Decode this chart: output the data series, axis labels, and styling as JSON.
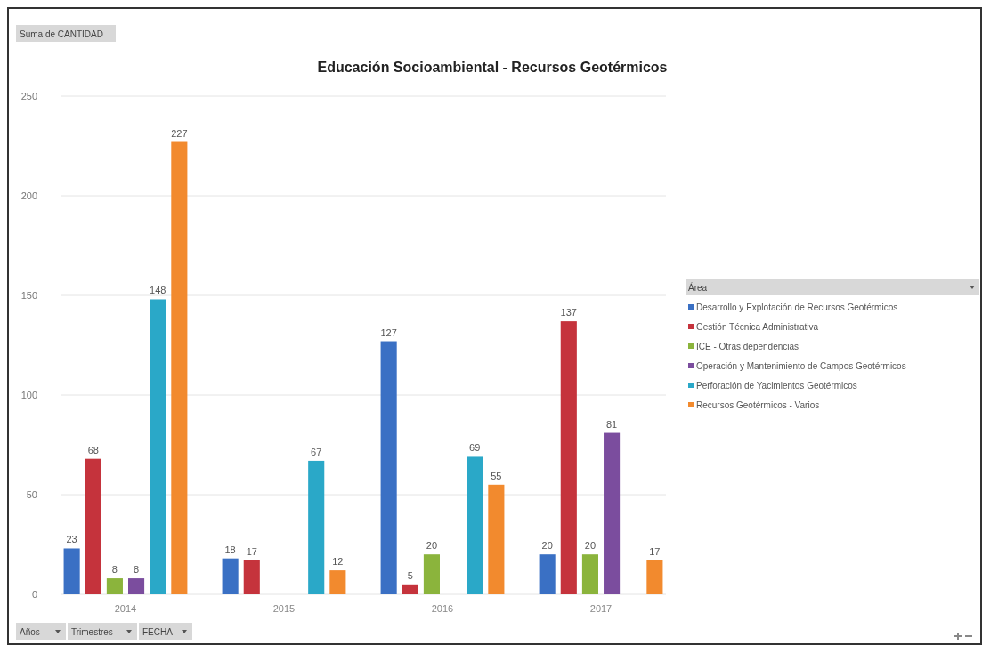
{
  "chart_data": {
    "type": "bar",
    "title": "Educación Socioambiental - Recursos Geotérmicos",
    "categories": [
      "2014",
      "2015",
      "2016",
      "2017"
    ],
    "series": [
      {
        "name": "Desarrollo y Explotación de Recursos Geotérmicos",
        "color": "#3a70c4",
        "values": [
          23,
          18,
          127,
          20
        ]
      },
      {
        "name": "Gestión Técnica Administrativa",
        "color": "#c5333c",
        "values": [
          68,
          17,
          5,
          137
        ]
      },
      {
        "name": "ICE - Otras dependencias",
        "color": "#8bb43c",
        "values": [
          8,
          null,
          20,
          20
        ]
      },
      {
        "name": "Operación y Mantenimiento de Campos Geotérmicos",
        "color": "#7b4d9e",
        "values": [
          8,
          null,
          null,
          81
        ]
      },
      {
        "name": "Perforación de Yacimientos Geotérmicos",
        "color": "#2aa8c8",
        "values": [
          148,
          67,
          69,
          null
        ]
      },
      {
        "name": "Recursos Geotérmicos - Varios",
        "color": "#f28a2e",
        "values": [
          227,
          12,
          55,
          17
        ]
      }
    ],
    "legend_title": "Área",
    "legend": "right",
    "ylim": [
      0,
      250
    ],
    "yticks": [
      0,
      50,
      100,
      150,
      200,
      250
    ],
    "grid": "y",
    "data_labels": true,
    "annotations": [
      "Suma de CANTIDAD",
      "Años",
      "Trimestres",
      "FECHA"
    ]
  }
}
